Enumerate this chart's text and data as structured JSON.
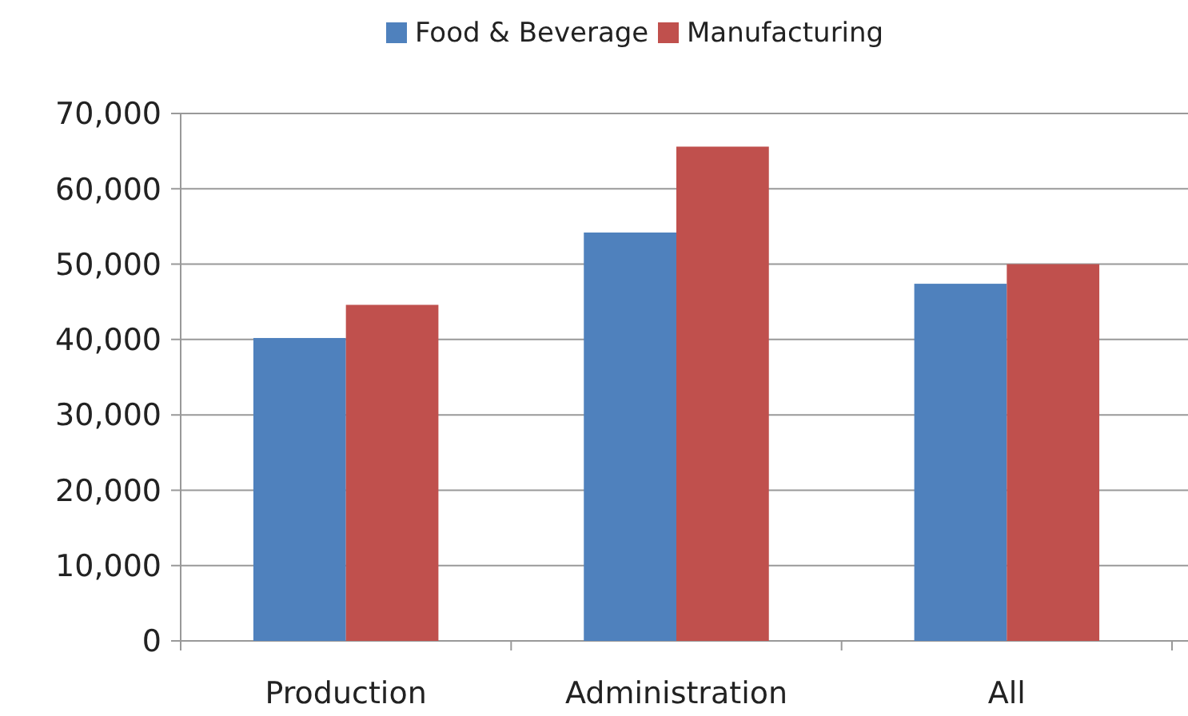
{
  "chart_data": {
    "type": "bar",
    "categories": [
      "Production",
      "Administration",
      "All"
    ],
    "series": [
      {
        "name": "Food & Beverage",
        "color": "#4f81bd",
        "values": [
          40200,
          54200,
          47400
        ]
      },
      {
        "name": "Manufacturing",
        "color": "#c0504d",
        "values": [
          44600,
          65600,
          50000
        ]
      }
    ],
    "ylim": [
      0,
      70000
    ],
    "yticks": [
      {
        "value": 0,
        "label": "0"
      },
      {
        "value": 10000,
        "label": "10,000"
      },
      {
        "value": 20000,
        "label": "20,000"
      },
      {
        "value": 30000,
        "label": "30,000"
      },
      {
        "value": 40000,
        "label": "40,000"
      },
      {
        "value": 50000,
        "label": "50,000"
      },
      {
        "value": 60000,
        "label": "60,000"
      },
      {
        "value": 70000,
        "label": "70,000"
      }
    ],
    "grid": "y",
    "legend": "top"
  }
}
